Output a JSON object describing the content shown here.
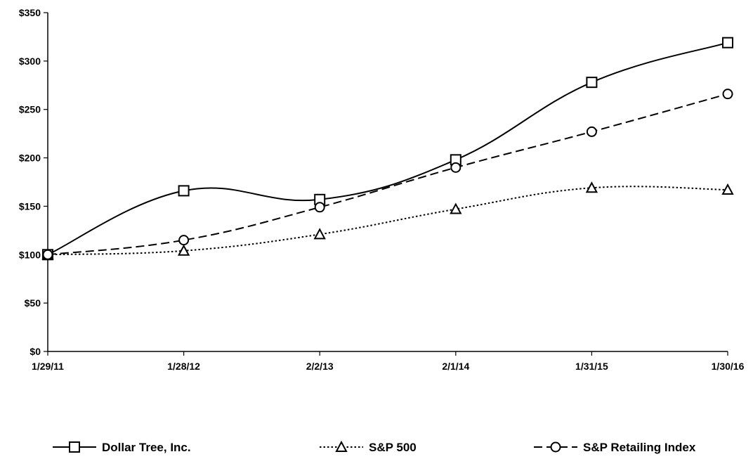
{
  "chart_data": {
    "type": "line",
    "title": "",
    "xlabel": "",
    "ylabel": "",
    "categories": [
      "1/29/11",
      "1/28/12",
      "2/2/13",
      "2/1/14",
      "1/31/15",
      "1/30/16"
    ],
    "y_ticks": [
      "$0",
      "$50",
      "$100",
      "$150",
      "$200",
      "$250",
      "$300",
      "$350"
    ],
    "y_tick_values": [
      0,
      50,
      100,
      150,
      200,
      250,
      300,
      350
    ],
    "ylim": [
      0,
      350
    ],
    "grid": false,
    "legend_position": "bottom",
    "series": [
      {
        "name": "Dollar Tree, Inc.",
        "values": [
          100,
          166,
          157,
          198,
          278,
          319
        ],
        "marker": "square",
        "line_style": "solid"
      },
      {
        "name": "S&P 500",
        "values": [
          100,
          104,
          121,
          147,
          169,
          167
        ],
        "marker": "triangle",
        "line_style": "dotted"
      },
      {
        "name": "S&P Retailing Index",
        "values": [
          100,
          115,
          149,
          190,
          227,
          266
        ],
        "marker": "circle",
        "line_style": "dashed"
      }
    ]
  }
}
